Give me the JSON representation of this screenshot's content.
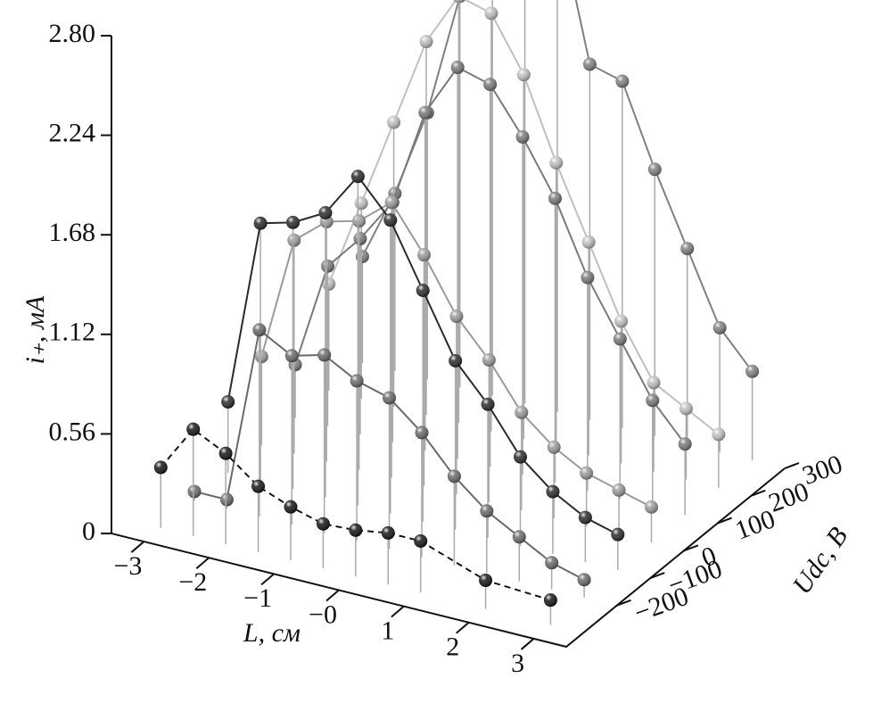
{
  "chart_data": {
    "type": "line3d",
    "x_label": "L, см",
    "y_label": "Udc, В",
    "z_label": "i₊, мА",
    "xlim": [
      -3.5,
      3.5
    ],
    "ylim": [
      -350,
      300
    ],
    "zlim": [
      0,
      2.8
    ],
    "xticks": [
      {
        "value": -3,
        "label": "−3"
      },
      {
        "value": -2,
        "label": "−2"
      },
      {
        "value": -1,
        "label": "−1"
      },
      {
        "value": 0,
        "label": "−0"
      },
      1,
      2,
      3
    ],
    "yticks": [
      {
        "value": -200,
        "label": "−200"
      },
      {
        "value": -100,
        "label": "−100"
      },
      0,
      100,
      200,
      300
    ],
    "zticks": [
      0,
      0.56,
      1.12,
      1.68,
      2.24,
      {
        "value": 2.8,
        "label": "2.80"
      }
    ],
    "series": [
      {
        "udc": -300,
        "color": "#151515",
        "dashed": true,
        "x": [
          -3,
          -2.5,
          -2,
          -1.5,
          -1,
          -0.5,
          0,
          0.5,
          1,
          2,
          3
        ],
        "values": [
          0.34,
          0.6,
          0.51,
          0.37,
          0.3,
          0.25,
          0.26,
          0.29,
          0.29,
          0.16,
          0.14
        ]
      },
      {
        "udc": -200,
        "color": "#6a6a6a",
        "dashed": false,
        "x": [
          -3,
          -2.5,
          -2,
          -1.5,
          -1,
          -0.5,
          0,
          0.5,
          1,
          1.5,
          2,
          2.5,
          3
        ],
        "values": [
          0.05,
          0.05,
          1.05,
          0.95,
          1.0,
          0.9,
          0.85,
          0.7,
          0.5,
          0.35,
          0.25,
          0.15,
          0.1
        ]
      },
      {
        "udc": -100,
        "color": "#2a2a2a",
        "dashed": false,
        "x": [
          -3,
          -2.5,
          -2,
          -1.5,
          -1,
          -0.5,
          0,
          0.5,
          1,
          1.5,
          2,
          2.5,
          3
        ],
        "values": [
          0.4,
          1.45,
          1.5,
          1.6,
          1.85,
          1.65,
          1.3,
          0.95,
          0.75,
          0.5,
          0.35,
          0.25,
          0.2
        ]
      },
      {
        "udc": 0,
        "color": "#9a9a9a",
        "dashed": false,
        "x": [
          -3,
          -2.5,
          -2,
          -1.5,
          -1,
          -0.5,
          0,
          0.5,
          1,
          1.5,
          2,
          2.5,
          3
        ],
        "values": [
          0.5,
          1.2,
          1.35,
          1.4,
          1.55,
          1.3,
          1.0,
          0.8,
          0.55,
          0.4,
          0.3,
          0.25,
          0.2
        ]
      },
      {
        "udc": 100,
        "color": "#7a7a7a",
        "dashed": false,
        "x": [
          -3,
          -2.5,
          -2,
          -1.5,
          -1,
          -0.5,
          0,
          0.5,
          1,
          1.5,
          2,
          2.5,
          3
        ],
        "values": [
          0.3,
          0.9,
          1.1,
          1.35,
          1.9,
          2.2,
          2.15,
          1.9,
          1.6,
          1.2,
          0.9,
          0.6,
          0.4
        ]
      },
      {
        "udc": 200,
        "color": "#c0c0c0",
        "dashed": false,
        "x": [
          -3,
          -2.5,
          -2,
          -1.5,
          -1,
          -0.5,
          0,
          0.5,
          1,
          1.5,
          2,
          2.5,
          3
        ],
        "values": [
          0.6,
          1.1,
          1.6,
          2.1,
          2.4,
          2.35,
          2.05,
          1.6,
          1.2,
          0.8,
          0.5,
          0.4,
          0.3
        ]
      },
      {
        "udc": 300,
        "color": "#808080",
        "dashed": false,
        "x": [
          -3,
          -2.5,
          -2,
          -1.5,
          -1,
          -0.5,
          0,
          0.5,
          1,
          1.5,
          2,
          2.5,
          3
        ],
        "values": [
          0.6,
          1.0,
          1.5,
          2.2,
          2.85,
          2.65,
          2.8,
          2.0,
          1.95,
          1.5,
          1.1,
          0.7,
          0.5
        ]
      }
    ]
  }
}
